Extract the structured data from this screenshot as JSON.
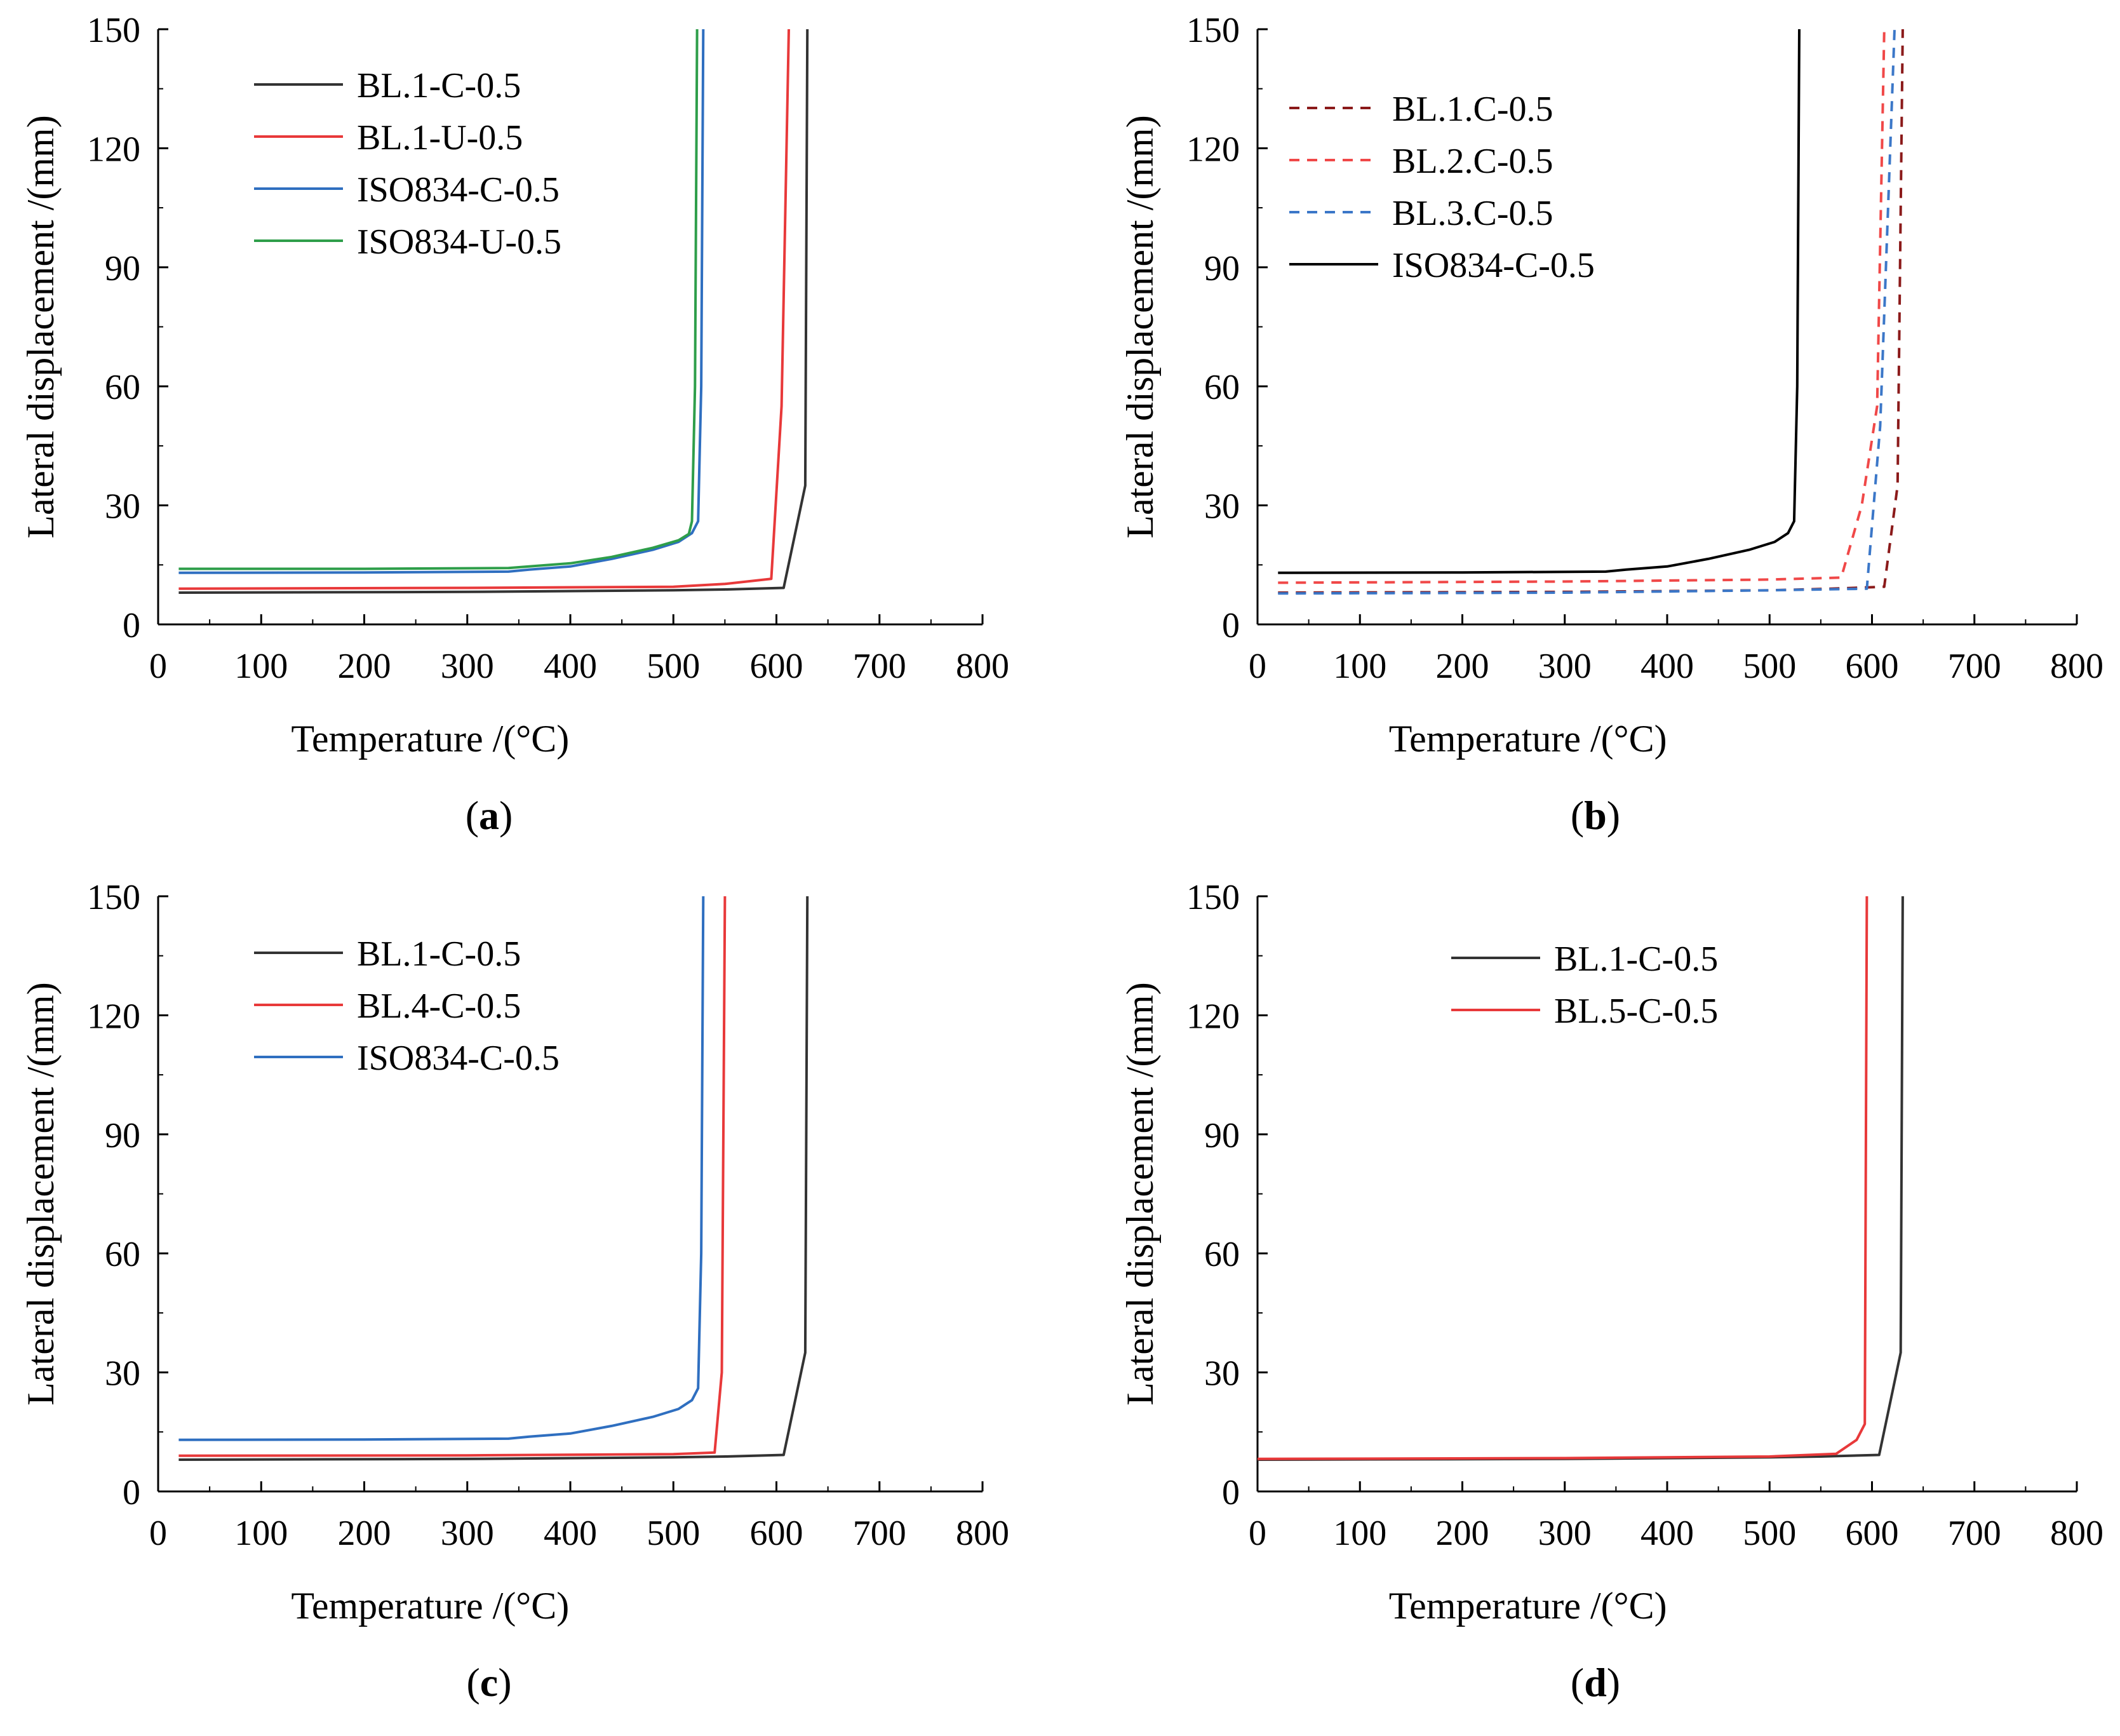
{
  "chart_data": [
    {
      "panel": "a",
      "type": "line",
      "xlabel": "Temperature /(°C)",
      "ylabel": "Lateral displacement /(mm)",
      "xlim": [
        0,
        800
      ],
      "ylim": [
        0,
        150
      ],
      "xticks": [
        0,
        100,
        200,
        300,
        400,
        500,
        600,
        700,
        800
      ],
      "yticks": [
        0,
        30,
        60,
        90,
        120,
        150
      ],
      "legend_position": "top-left",
      "series": [
        {
          "name": "BL.1-C-0.5",
          "color": "#333333",
          "dash": "solid",
          "points": [
            [
              20,
              8
            ],
            [
              300,
              8.2
            ],
            [
              500,
              8.6
            ],
            [
              550,
              8.8
            ],
            [
              607,
              9.2
            ],
            [
              628,
              35
            ],
            [
              630,
              150
            ]
          ]
        },
        {
          "name": "BL.1-U-0.5",
          "color": "#e8393a",
          "dash": "solid",
          "points": [
            [
              20,
              9
            ],
            [
              300,
              9.2
            ],
            [
              500,
              9.5
            ],
            [
              550,
              10.2
            ],
            [
              595,
              11.5
            ],
            [
              605,
              55
            ],
            [
              612,
              150
            ]
          ]
        },
        {
          "name": "ISO834-C-0.5",
          "color": "#2f6fc0",
          "dash": "solid",
          "points": [
            [
              20,
              13
            ],
            [
              200,
              13.1
            ],
            [
              340,
              13.3
            ],
            [
              360,
              13.8
            ],
            [
              400,
              14.6
            ],
            [
              440,
              16.5
            ],
            [
              480,
              18.8
            ],
            [
              505,
              20.8
            ],
            [
              518,
              23
            ],
            [
              524,
              26
            ],
            [
              527,
              60
            ],
            [
              529,
              150
            ]
          ]
        },
        {
          "name": "ISO834-U-0.5",
          "color": "#2e9e4a",
          "dash": "solid",
          "points": [
            [
              20,
              14
            ],
            [
              200,
              14
            ],
            [
              340,
              14.2
            ],
            [
              360,
              14.6
            ],
            [
              400,
              15.4
            ],
            [
              440,
              17
            ],
            [
              480,
              19.3
            ],
            [
              505,
              21.2
            ],
            [
              515,
              22.8
            ],
            [
              518,
              26
            ],
            [
              521,
              60
            ],
            [
              523,
              150
            ]
          ]
        }
      ]
    },
    {
      "panel": "b",
      "type": "line",
      "xlabel": "Temperature /(°C)",
      "ylabel": "Lateral displacement /(mm)",
      "xlim": [
        0,
        800
      ],
      "ylim": [
        0,
        150
      ],
      "xticks": [
        0,
        100,
        200,
        300,
        400,
        500,
        600,
        700,
        800
      ],
      "yticks": [
        0,
        30,
        60,
        90,
        120,
        150
      ],
      "legend_position": "top-left",
      "series": [
        {
          "name": "BL.1.C-0.5",
          "color": "#8b1a1a",
          "dash": "dashed",
          "points": [
            [
              20,
              8
            ],
            [
              300,
              8.2
            ],
            [
              500,
              8.6
            ],
            [
              560,
              9
            ],
            [
              612,
              9.5
            ],
            [
              625,
              35
            ],
            [
              630,
              150
            ]
          ]
        },
        {
          "name": "BL.2.C-0.5",
          "color": "#f04848",
          "dash": "dashed",
          "points": [
            [
              20,
              10.5
            ],
            [
              300,
              10.8
            ],
            [
              500,
              11.3
            ],
            [
              570,
              11.8
            ],
            [
              590,
              30
            ],
            [
              605,
              55
            ],
            [
              612,
              150
            ]
          ]
        },
        {
          "name": "BL.3.C-0.5",
          "color": "#3b77c8",
          "dash": "dashed",
          "points": [
            [
              20,
              7.8
            ],
            [
              300,
              8
            ],
            [
              500,
              8.6
            ],
            [
              595,
              9
            ],
            [
              608,
              50
            ],
            [
              622,
              150
            ]
          ]
        },
        {
          "name": "ISO834-C-0.5",
          "color": "#000000",
          "dash": "solid",
          "points": [
            [
              20,
              13
            ],
            [
              200,
              13.1
            ],
            [
              340,
              13.3
            ],
            [
              360,
              13.8
            ],
            [
              400,
              14.6
            ],
            [
              440,
              16.5
            ],
            [
              480,
              18.8
            ],
            [
              505,
              20.8
            ],
            [
              518,
              23
            ],
            [
              524,
              26
            ],
            [
              527,
              60
            ],
            [
              529,
              150
            ]
          ]
        }
      ]
    },
    {
      "panel": "c",
      "type": "line",
      "xlabel": "Temperature /(°C)",
      "ylabel": "Lateral displacement /(mm)",
      "xlim": [
        0,
        800
      ],
      "ylim": [
        0,
        150
      ],
      "xticks": [
        0,
        100,
        200,
        300,
        400,
        500,
        600,
        700,
        800
      ],
      "yticks": [
        0,
        30,
        60,
        90,
        120,
        150
      ],
      "legend_position": "top-left",
      "series": [
        {
          "name": "BL.1-C-0.5",
          "color": "#333333",
          "dash": "solid",
          "points": [
            [
              20,
              8
            ],
            [
              300,
              8.2
            ],
            [
              500,
              8.6
            ],
            [
              550,
              8.8
            ],
            [
              607,
              9.2
            ],
            [
              628,
              35
            ],
            [
              630,
              150
            ]
          ]
        },
        {
          "name": "BL.4-C-0.5",
          "color": "#e8393a",
          "dash": "solid",
          "points": [
            [
              20,
              9
            ],
            [
              300,
              9.1
            ],
            [
              500,
              9.4
            ],
            [
              540,
              9.8
            ],
            [
              547,
              30
            ],
            [
              550,
              150
            ]
          ]
        },
        {
          "name": "ISO834-C-0.5",
          "color": "#2f6fc0",
          "dash": "solid",
          "points": [
            [
              20,
              13
            ],
            [
              200,
              13.1
            ],
            [
              340,
              13.3
            ],
            [
              360,
              13.8
            ],
            [
              400,
              14.6
            ],
            [
              440,
              16.5
            ],
            [
              480,
              18.8
            ],
            [
              505,
              20.8
            ],
            [
              518,
              23
            ],
            [
              524,
              26
            ],
            [
              527,
              60
            ],
            [
              529,
              150
            ]
          ]
        }
      ]
    },
    {
      "panel": "d",
      "type": "line",
      "xlabel": "Temperature /(°C)",
      "ylabel": "Lateral displacement /(mm)",
      "xlim": [
        0,
        800
      ],
      "ylim": [
        0,
        150
      ],
      "xticks": [
        0,
        100,
        200,
        300,
        400,
        500,
        600,
        700,
        800
      ],
      "yticks": [
        0,
        30,
        60,
        90,
        120,
        150
      ],
      "legend_position": "top-center",
      "series": [
        {
          "name": "BL.1-C-0.5",
          "color": "#333333",
          "dash": "solid",
          "points": [
            [
              0,
              8
            ],
            [
              300,
              8.2
            ],
            [
              500,
              8.6
            ],
            [
              550,
              8.8
            ],
            [
              607,
              9.2
            ],
            [
              628,
              35
            ],
            [
              630,
              150
            ]
          ]
        },
        {
          "name": "BL.5-C-0.5",
          "color": "#e8393a",
          "dash": "solid",
          "points": [
            [
              0,
              8.2
            ],
            [
              300,
              8.4
            ],
            [
              500,
              8.8
            ],
            [
              565,
              9.5
            ],
            [
              585,
              13
            ],
            [
              593,
              17
            ],
            [
              595,
              150
            ]
          ]
        }
      ]
    }
  ]
}
